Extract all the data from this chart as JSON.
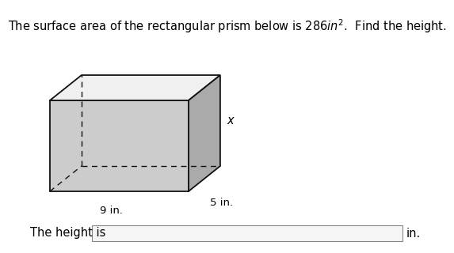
{
  "title": "The surface area of the rectangular prism below is 286$in^2$.  Find the height.",
  "label_width": "9 in.",
  "label_depth": "5 in.",
  "label_height": "x",
  "answer_prefix": "The height is",
  "answer_suffix": "in.",
  "bg_color": "#ffffff",
  "box_face_color": "#cccccc",
  "box_top_color": "#f0f0f0",
  "box_right_color": "#aaaaaa",
  "box_edge_color": "#111111",
  "font_size_title": 10.5,
  "font_size_labels": 9.5,
  "font_size_answer": 10.5
}
